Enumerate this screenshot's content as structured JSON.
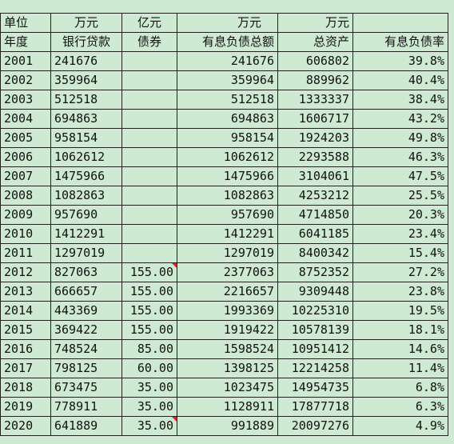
{
  "header_units": {
    "unit_label": "单位",
    "loans_unit": "万元",
    "bonds_unit": "亿元",
    "debt_unit": "万元",
    "assets_unit": "万元"
  },
  "columns": [
    "年度",
    "银行贷款",
    "债券",
    "有息负债总额",
    "总资产",
    "有息负债率"
  ],
  "rows": [
    {
      "year": "2001",
      "loans": "241676",
      "bonds": "",
      "debt": "241676",
      "assets": "606802",
      "ratio": "39.8%"
    },
    {
      "year": "2002",
      "loans": "359964",
      "bonds": "",
      "debt": "359964",
      "assets": "889962",
      "ratio": "40.4%"
    },
    {
      "year": "2003",
      "loans": "512518",
      "bonds": "",
      "debt": "512518",
      "assets": "1333337",
      "ratio": "38.4%"
    },
    {
      "year": "2004",
      "loans": "694863",
      "bonds": "",
      "debt": "694863",
      "assets": "1606717",
      "ratio": "43.2%"
    },
    {
      "year": "2005",
      "loans": "958154",
      "bonds": "",
      "debt": "958154",
      "assets": "1924203",
      "ratio": "49.8%"
    },
    {
      "year": "2006",
      "loans": "1062612",
      "bonds": "",
      "debt": "1062612",
      "assets": "2293588",
      "ratio": "46.3%"
    },
    {
      "year": "2007",
      "loans": "1475966",
      "bonds": "",
      "debt": "1475966",
      "assets": "3104061",
      "ratio": "47.5%"
    },
    {
      "year": "2008",
      "loans": "1082863",
      "bonds": "",
      "debt": "1082863",
      "assets": "4253212",
      "ratio": "25.5%"
    },
    {
      "year": "2009",
      "loans": "957690",
      "bonds": "",
      "debt": "957690",
      "assets": "4714850",
      "ratio": "20.3%"
    },
    {
      "year": "2010",
      "loans": "1412291",
      "bonds": "",
      "debt": "1412291",
      "assets": "6041185",
      "ratio": "23.4%"
    },
    {
      "year": "2011",
      "loans": "1297019",
      "bonds": "",
      "debt": "1297019",
      "assets": "8400342",
      "ratio": "15.4%"
    },
    {
      "year": "2012",
      "loans": "827063",
      "bonds": "155.00",
      "debt": "2377063",
      "assets": "8752352",
      "ratio": "27.2%"
    },
    {
      "year": "2013",
      "loans": "666657",
      "bonds": "155.00",
      "debt": "2216657",
      "assets": "9309448",
      "ratio": "23.8%"
    },
    {
      "year": "2014",
      "loans": "443369",
      "bonds": "155.00",
      "debt": "1993369",
      "assets": "10225310",
      "ratio": "19.5%"
    },
    {
      "year": "2015",
      "loans": "369422",
      "bonds": "155.00",
      "debt": "1919422",
      "assets": "10578139",
      "ratio": "18.1%"
    },
    {
      "year": "2016",
      "loans": "748524",
      "bonds": "85.00",
      "debt": "1598524",
      "assets": "10951412",
      "ratio": "14.6%"
    },
    {
      "year": "2017",
      "loans": "798125",
      "bonds": "60.00",
      "debt": "1398125",
      "assets": "12214258",
      "ratio": "11.4%"
    },
    {
      "year": "2018",
      "loans": "673475",
      "bonds": "35.00",
      "debt": "1023475",
      "assets": "14954735",
      "ratio": "6.8%"
    },
    {
      "year": "2019",
      "loans": "778911",
      "bonds": "35.00",
      "debt": "1128911",
      "assets": "17877718",
      "ratio": "6.3%"
    },
    {
      "year": "2020",
      "loans": "641889",
      "bonds": "35.00",
      "debt": "991889",
      "assets": "20097276",
      "ratio": "4.9%"
    }
  ],
  "highlighted_year": "2002",
  "highlight_color": "#e02020",
  "sheet_background": "#cfead2",
  "comment_marker_years": [
    "2012",
    "2020"
  ]
}
